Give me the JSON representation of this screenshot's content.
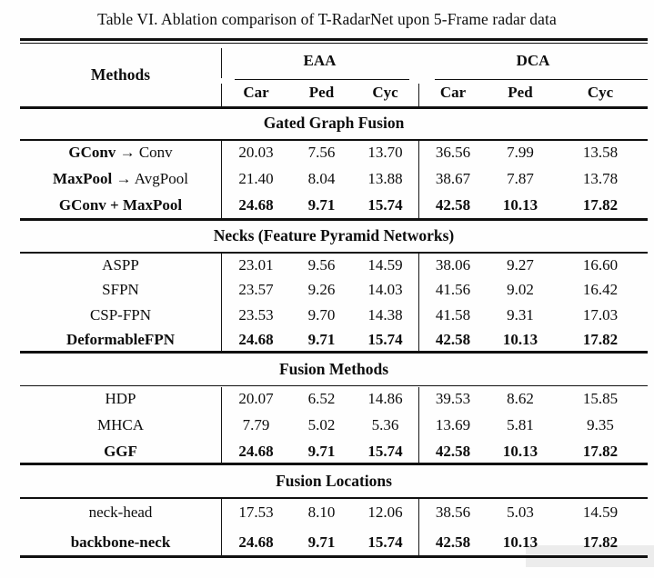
{
  "page": {
    "background": "#ffffff",
    "rule_color": "#101010",
    "text_color": "#0d0d0d"
  },
  "title": "Table VI. Ablation comparison of T-RadarNet upon 5-Frame radar data",
  "header": {
    "methods_label": "Methods",
    "groups": [
      {
        "label": "EAA",
        "cols": [
          "Car",
          "Ped",
          "Cyc"
        ]
      },
      {
        "label": "DCA",
        "cols": [
          "Car",
          "Ped",
          "Cyc"
        ]
      }
    ]
  },
  "sections": [
    {
      "title": "Gated Graph Fusion",
      "rows": [
        {
          "method_parts": [
            {
              "text": "GConv",
              "bold": true
            },
            {
              "text": " → ",
              "bold": false
            },
            {
              "text": "Conv",
              "bold": false
            }
          ],
          "values": [
            "20.03",
            "7.56",
            "13.70",
            "36.56",
            "7.99",
            "13.58"
          ],
          "bold": false
        },
        {
          "method_parts": [
            {
              "text": "MaxPool",
              "bold": true
            },
            {
              "text": " → ",
              "bold": false
            },
            {
              "text": "AvgPool",
              "bold": false
            }
          ],
          "values": [
            "21.40",
            "8.04",
            "13.88",
            "38.67",
            "7.87",
            "13.78"
          ],
          "bold": false
        },
        {
          "method_parts": [
            {
              "text": "GConv + MaxPool",
              "bold": true
            }
          ],
          "values": [
            "24.68",
            "9.71",
            "15.74",
            "42.58",
            "10.13",
            "17.82"
          ],
          "bold": true
        }
      ]
    },
    {
      "title": "Necks (Feature Pyramid Networks)",
      "rows": [
        {
          "method_parts": [
            {
              "text": "ASPP",
              "bold": false
            }
          ],
          "values": [
            "23.01",
            "9.56",
            "14.59",
            "38.06",
            "9.27",
            "16.60"
          ],
          "bold": false
        },
        {
          "method_parts": [
            {
              "text": "SFPN",
              "bold": false
            }
          ],
          "values": [
            "23.57",
            "9.26",
            "14.03",
            "41.56",
            "9.02",
            "16.42"
          ],
          "bold": false
        },
        {
          "method_parts": [
            {
              "text": "CSP-FPN",
              "bold": false
            }
          ],
          "values": [
            "23.53",
            "9.70",
            "14.38",
            "41.58",
            "9.31",
            "17.03"
          ],
          "bold": false
        },
        {
          "method_parts": [
            {
              "text": "DeformableFPN",
              "bold": true
            }
          ],
          "values": [
            "24.68",
            "9.71",
            "15.74",
            "42.58",
            "10.13",
            "17.82"
          ],
          "bold": true
        }
      ]
    },
    {
      "title": "Fusion Methods",
      "rows": [
        {
          "method_parts": [
            {
              "text": "HDP",
              "bold": false
            }
          ],
          "values": [
            "20.07",
            "6.52",
            "14.86",
            "39.53",
            "8.62",
            "15.85"
          ],
          "bold": false
        },
        {
          "method_parts": [
            {
              "text": "MHCA",
              "bold": false
            }
          ],
          "values": [
            "7.79",
            "5.02",
            "5.36",
            "13.69",
            "5.81",
            "9.35"
          ],
          "bold": false
        },
        {
          "method_parts": [
            {
              "text": "GGF",
              "bold": true
            }
          ],
          "values": [
            "24.68",
            "9.71",
            "15.74",
            "42.58",
            "10.13",
            "17.82"
          ],
          "bold": true
        }
      ]
    },
    {
      "title": "Fusion Locations",
      "rows": [
        {
          "method_parts": [
            {
              "text": "neck-head",
              "bold": false
            }
          ],
          "values": [
            "17.53",
            "8.10",
            "12.06",
            "38.56",
            "5.03",
            "14.59"
          ],
          "bold": false
        },
        {
          "method_parts": [
            {
              "text": "backbone-neck",
              "bold": true
            }
          ],
          "values": [
            "24.68",
            "9.71",
            "15.74",
            "42.58",
            "10.13",
            "17.82"
          ],
          "bold": true
        }
      ]
    }
  ]
}
